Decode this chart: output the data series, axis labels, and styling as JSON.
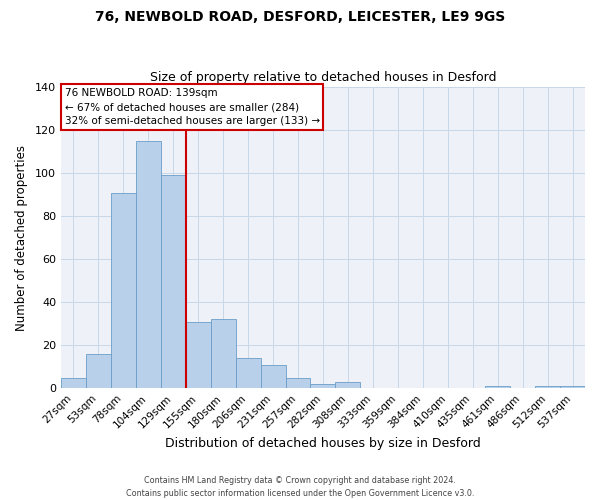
{
  "title": "76, NEWBOLD ROAD, DESFORD, LEICESTER, LE9 9GS",
  "subtitle": "Size of property relative to detached houses in Desford",
  "xlabel": "Distribution of detached houses by size in Desford",
  "ylabel": "Number of detached properties",
  "bar_labels": [
    "27sqm",
    "53sqm",
    "78sqm",
    "104sqm",
    "129sqm",
    "155sqm",
    "180sqm",
    "206sqm",
    "231sqm",
    "257sqm",
    "282sqm",
    "308sqm",
    "333sqm",
    "359sqm",
    "384sqm",
    "410sqm",
    "435sqm",
    "461sqm",
    "486sqm",
    "512sqm",
    "537sqm"
  ],
  "bar_values": [
    5,
    16,
    91,
    115,
    99,
    31,
    32,
    14,
    11,
    5,
    2,
    3,
    0,
    0,
    0,
    0,
    0,
    1,
    0,
    1,
    1
  ],
  "bar_color": "#b8d0ea",
  "bar_edge_color": "#6b9ec8",
  "vline_color": "#cc0000",
  "annotation_text": "76 NEWBOLD ROAD: 139sqm\n← 67% of detached houses are smaller (284)\n32% of semi-detached houses are larger (133) →",
  "annotation_box_facecolor": "#ffffff",
  "annotation_box_edgecolor": "#cc0000",
  "ylim": [
    0,
    140
  ],
  "yticks": [
    0,
    20,
    40,
    60,
    80,
    100,
    120,
    140
  ],
  "grid_color": "#c8d8e8",
  "background_color": "#eef2f8",
  "footer_line1": "Contains HM Land Registry data © Crown copyright and database right 2024.",
  "footer_line2": "Contains public sector information licensed under the Open Government Licence v3.0."
}
